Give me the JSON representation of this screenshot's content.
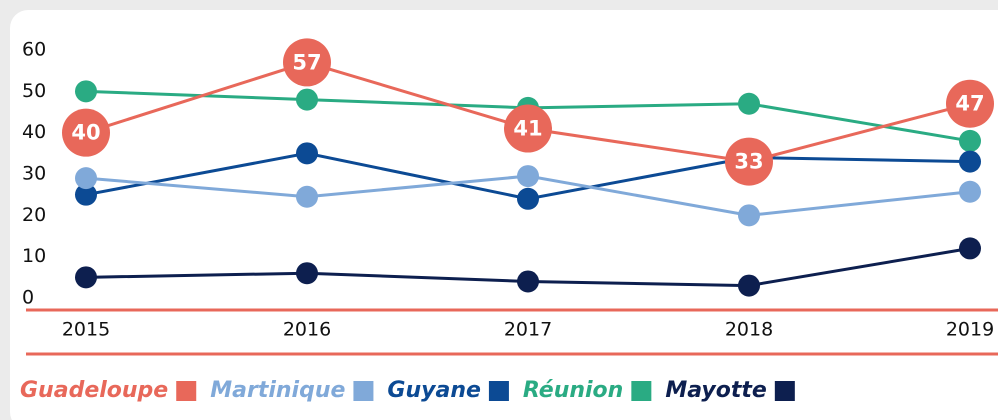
{
  "chart_data": {
    "type": "line",
    "categories": [
      "2015",
      "2016",
      "2017",
      "2018",
      "2019"
    ],
    "series": [
      {
        "name": "Guadeloupe",
        "color": "#e8685a",
        "values": [
          40,
          57,
          41,
          33,
          47
        ],
        "data_labels": true
      },
      {
        "name": "Martinique",
        "color": "#80a9d9",
        "values": [
          29,
          24.5,
          29.5,
          20,
          25.7
        ]
      },
      {
        "name": "Guyane",
        "color": "#0c4a94",
        "values": [
          25,
          35,
          24,
          34,
          33
        ]
      },
      {
        "name": "Réunion",
        "color": "#2aab83",
        "values": [
          50,
          48,
          46,
          47,
          38
        ]
      },
      {
        "name": "Mayotte",
        "color": "#0d1f4f",
        "values": [
          5,
          6,
          4,
          3,
          12
        ]
      }
    ],
    "ylim": [
      0,
      60
    ],
    "yticks": [
      0,
      10,
      20,
      30,
      40,
      50,
      60
    ],
    "grid": false,
    "legend": "bottom"
  }
}
